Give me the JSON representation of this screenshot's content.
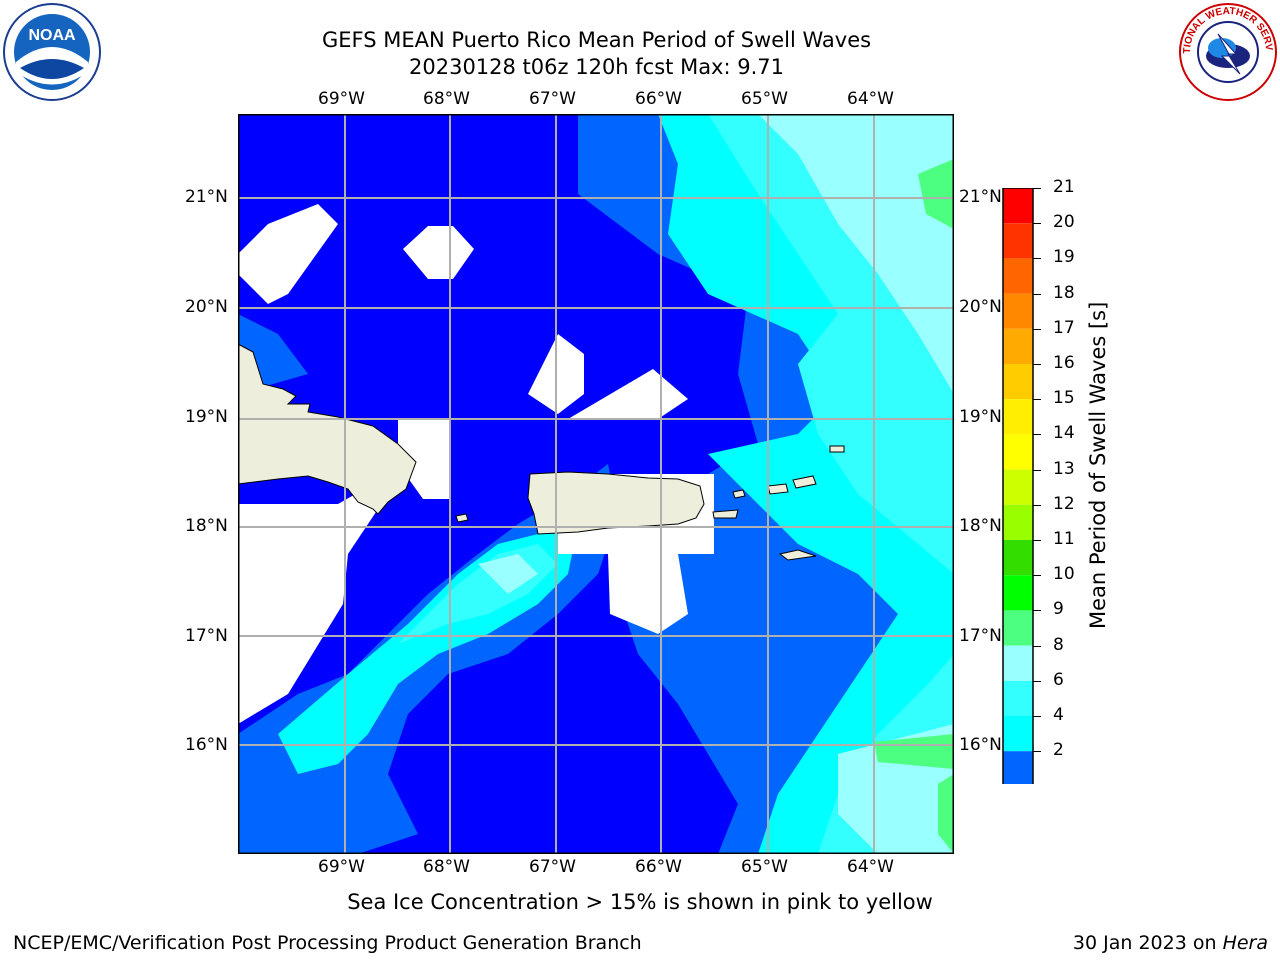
{
  "header": {
    "title_line1": "GEFS MEAN Puerto Rico Mean Period of Swell Waves",
    "title_line2": "20230128 t06z 120h fcst   Max: 9.71"
  },
  "logos": {
    "left": "noara-logo",
    "left_text": "NOAA",
    "right": "nws-logo",
    "right_text": "NATIONAL WEATHER SERVICE"
  },
  "map": {
    "lon_ticks": [
      "69°W",
      "68°W",
      "67°W",
      "66°W",
      "65°W",
      "64°W"
    ],
    "lat_ticks": [
      "21°N",
      "20°N",
      "19°N",
      "18°N",
      "17°N",
      "16°N"
    ],
    "colors": {
      "ocean_deep": "#0000ff",
      "level_2_4": "#0066ff",
      "level_4_6": "#00ffff",
      "level_6_8": "#33ffff",
      "level_8_9": "#99ffff",
      "level_9_10": "#4dff80",
      "land": "#eeeedd",
      "nodata": "#ffffff"
    }
  },
  "colorbar": {
    "title": "Mean Period of Swell Waves [s]",
    "labels": [
      "21",
      "20",
      "19",
      "18",
      "17",
      "16",
      "15",
      "14",
      "13",
      "12",
      "11",
      "10",
      "9",
      "8",
      "6",
      "4",
      "2"
    ],
    "colors": [
      "#ff0000",
      "#ff3300",
      "#ff6600",
      "#ff8800",
      "#ffaa00",
      "#ffcc00",
      "#ffee00",
      "#ffff00",
      "#ccff00",
      "#99ff00",
      "#33dd00",
      "#00ff00",
      "#4dff80",
      "#99ffff",
      "#33ffff",
      "#00ffff",
      "#0066ff"
    ],
    "extend_color": "#0000ff"
  },
  "footer": {
    "note": "Sea Ice Concentration > 15% is shown in pink to yellow",
    "credit": "NCEP/EMC/Verification Post Processing Product Generation Branch",
    "date": "30 Jan 2023 on ",
    "machine": "Hera"
  }
}
